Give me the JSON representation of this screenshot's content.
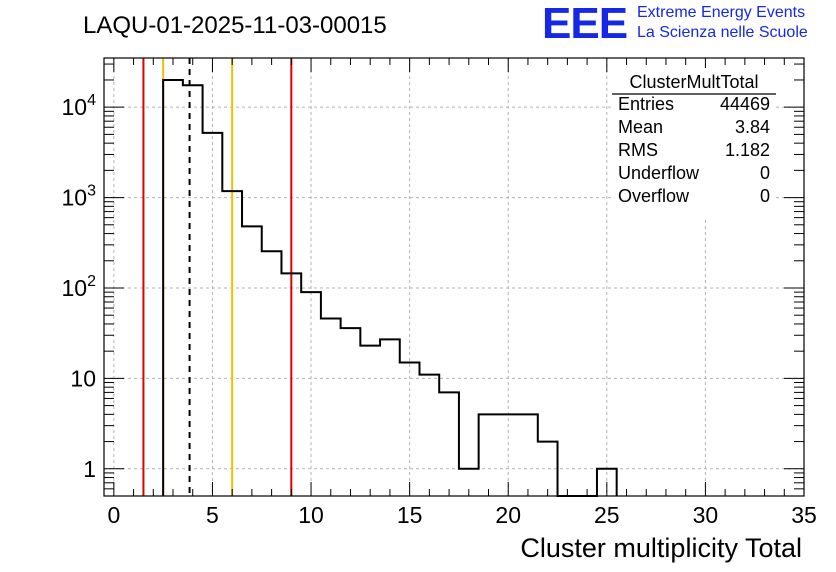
{
  "title": "LAQU-01-2025-11-03-00015",
  "logo": {
    "mark": "EEE",
    "line1": "Extreme Energy Events",
    "line2": "La Scienza nelle Scuole",
    "color": "#1428e6"
  },
  "stats": {
    "name": "ClusterMultTotal",
    "rows": [
      {
        "label": "Entries",
        "value": "44469"
      },
      {
        "label": "Mean",
        "value": "3.84"
      },
      {
        "label": "RMS",
        "value": "1.182"
      },
      {
        "label": "Underflow",
        "value": "0"
      },
      {
        "label": "Overflow",
        "value": "0"
      }
    ]
  },
  "chart_data": {
    "type": "histogram",
    "title": "LAQU-01-2025-11-03-00015",
    "xlabel": "Cluster multiplicity Total",
    "ylabel": "",
    "xlim": [
      -0.5,
      35.0
    ],
    "ylim": [
      0.5,
      35000
    ],
    "yscale": "log",
    "grid": true,
    "bin_width": 1,
    "x_bin_centers": [
      3,
      4,
      5,
      6,
      7,
      8,
      9,
      10,
      11,
      12,
      13,
      14,
      15,
      16,
      17,
      18,
      19,
      20,
      21,
      22,
      23,
      24,
      25
    ],
    "counts": [
      20000,
      17500,
      5200,
      1180,
      480,
      255,
      145,
      90,
      46,
      36,
      23,
      27,
      15,
      11,
      7,
      1,
      4,
      4,
      4,
      2,
      0,
      0,
      1
    ],
    "x_ticks": [
      "0",
      "5",
      "10",
      "15",
      "20",
      "25",
      "30",
      "35"
    ],
    "x_tick_values": [
      0,
      5,
      10,
      15,
      20,
      25,
      30,
      35
    ],
    "y_ticks": [
      "1",
      "10",
      "10^2",
      "10^3",
      "10^4"
    ],
    "y_tick_values": [
      1,
      10,
      100,
      1000,
      10000
    ],
    "vertical_lines": [
      {
        "x": 1.5,
        "color": "#e00000",
        "style": "solid"
      },
      {
        "x": 2.5,
        "color": "#f0c000",
        "style": "solid"
      },
      {
        "x": 3.84,
        "color": "#000000",
        "style": "dashed"
      },
      {
        "x": 6.0,
        "color": "#f0c000",
        "style": "solid"
      },
      {
        "x": 9.0,
        "color": "#e00000",
        "style": "solid"
      }
    ]
  }
}
